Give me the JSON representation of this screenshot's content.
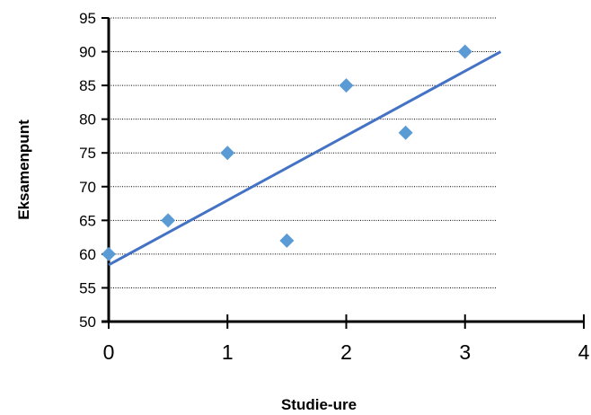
{
  "chart_data": {
    "type": "scatter",
    "xlabel": "Studie-ure",
    "ylabel": "Eksamenpunt",
    "xlim": [
      0,
      4
    ],
    "ylim": [
      50,
      95
    ],
    "x_ticks": [
      "0",
      "1",
      "2",
      "3",
      "4"
    ],
    "y_ticks": [
      "50",
      "55",
      "60",
      "65",
      "70",
      "75",
      "80",
      "85",
      "90",
      "95"
    ],
    "grid": "horizontal dotted",
    "legend": "none",
    "series": [
      {
        "points": [
          {
            "x": 0,
            "y": 60
          },
          {
            "x": 0.5,
            "y": 65
          },
          {
            "x": 1,
            "y": 75
          },
          {
            "x": 1.5,
            "y": 62
          },
          {
            "x": 2,
            "y": 85
          },
          {
            "x": 2.5,
            "y": 78
          },
          {
            "x": 3,
            "y": 90
          }
        ],
        "marker": "diamond",
        "color": "#5b9bd5"
      }
    ],
    "trendline": {
      "type": "linear",
      "from": {
        "x": 0,
        "y": 58.4
      },
      "to": {
        "x": 3.3,
        "y": 90
      },
      "color": "#4472c4"
    }
  }
}
